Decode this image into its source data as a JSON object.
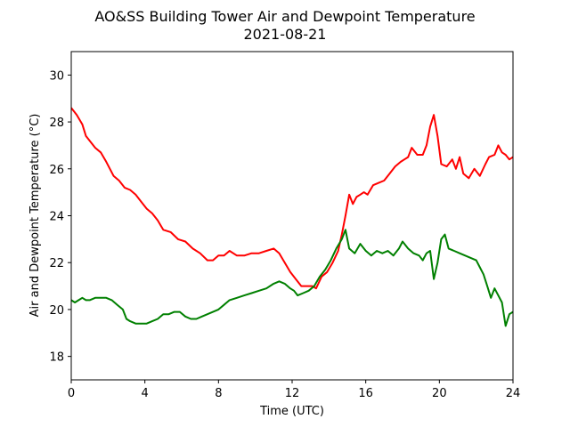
{
  "chart_data": {
    "type": "line",
    "title": "AO&SS Building Tower Air and Dewpoint Temperature",
    "subtitle": "2021-08-21",
    "xlabel": "Time (UTC)",
    "ylabel": "Air and Dewpoint Temperature (°C)",
    "xlim": [
      0,
      24
    ],
    "ylim": [
      17,
      31
    ],
    "xticks": [
      0,
      4,
      8,
      12,
      16,
      20,
      24
    ],
    "yticks": [
      18,
      20,
      22,
      24,
      26,
      28,
      30
    ],
    "grid": false,
    "legend": "none",
    "series": [
      {
        "color": "#ff0000",
        "x": [
          0,
          0.3,
          0.6,
          0.8,
          1.0,
          1.3,
          1.6,
          1.9,
          2.1,
          2.3,
          2.6,
          2.9,
          3.2,
          3.5,
          3.8,
          4.1,
          4.4,
          4.7,
          5.0,
          5.4,
          5.8,
          6.2,
          6.6,
          7.0,
          7.4,
          7.7,
          8.0,
          8.3,
          8.6,
          9.0,
          9.4,
          9.8,
          10.2,
          10.6,
          11.0,
          11.3,
          11.6,
          11.9,
          12.2,
          12.5,
          12.8,
          13.1,
          13.3,
          13.6,
          13.9,
          14.2,
          14.5,
          14.7,
          14.9,
          15.1,
          15.3,
          15.5,
          15.7,
          15.9,
          16.1,
          16.4,
          16.7,
          17.0,
          17.3,
          17.6,
          17.9,
          18.1,
          18.3,
          18.5,
          18.8,
          19.1,
          19.3,
          19.5,
          19.7,
          19.9,
          20.1,
          20.4,
          20.7,
          20.9,
          21.1,
          21.3,
          21.6,
          21.9,
          22.2,
          22.5,
          22.7,
          23.0,
          23.2,
          23.4,
          23.6,
          23.8,
          24.0
        ],
        "values": [
          28.6,
          28.3,
          27.9,
          27.4,
          27.2,
          26.9,
          26.7,
          26.3,
          26.0,
          25.7,
          25.5,
          25.2,
          25.1,
          24.9,
          24.6,
          24.3,
          24.1,
          23.8,
          23.4,
          23.3,
          23.0,
          22.9,
          22.6,
          22.4,
          22.1,
          22.1,
          22.3,
          22.3,
          22.5,
          22.3,
          22.3,
          22.4,
          22.4,
          22.5,
          22.6,
          22.4,
          22.0,
          21.6,
          21.3,
          21.0,
          21.0,
          21.0,
          20.9,
          21.4,
          21.6,
          22.0,
          22.5,
          23.2,
          24.0,
          24.9,
          24.5,
          24.8,
          24.9,
          25.0,
          24.9,
          25.3,
          25.4,
          25.5,
          25.8,
          26.1,
          26.3,
          26.4,
          26.5,
          26.9,
          26.6,
          26.6,
          27.0,
          27.8,
          28.3,
          27.4,
          26.2,
          26.1,
          26.4,
          26.0,
          26.5,
          25.8,
          25.6,
          26.0,
          25.7,
          26.2,
          26.5,
          26.6,
          27.0,
          26.7,
          26.6,
          26.4,
          26.5
        ]
      },
      {
        "color": "#008000",
        "x": [
          0,
          0.2,
          0.4,
          0.6,
          0.8,
          1.0,
          1.3,
          1.6,
          1.9,
          2.2,
          2.5,
          2.8,
          3.0,
          3.2,
          3.5,
          3.8,
          4.1,
          4.4,
          4.7,
          5.0,
          5.3,
          5.6,
          5.9,
          6.2,
          6.5,
          6.8,
          7.1,
          7.4,
          7.7,
          8.0,
          8.3,
          8.6,
          9.0,
          9.4,
          9.8,
          10.2,
          10.6,
          11.0,
          11.3,
          11.6,
          11.9,
          12.1,
          12.3,
          12.6,
          12.9,
          13.2,
          13.5,
          13.8,
          14.1,
          14.4,
          14.7,
          14.9,
          15.1,
          15.4,
          15.7,
          16.0,
          16.3,
          16.6,
          16.9,
          17.2,
          17.5,
          17.8,
          18.0,
          18.3,
          18.6,
          18.9,
          19.1,
          19.3,
          19.5,
          19.7,
          19.9,
          20.1,
          20.3,
          20.5,
          20.8,
          21.1,
          21.4,
          21.7,
          22.0,
          22.2,
          22.4,
          22.6,
          22.8,
          23.0,
          23.2,
          23.4,
          23.6,
          23.8,
          24.0
        ],
        "values": [
          20.4,
          20.3,
          20.4,
          20.5,
          20.4,
          20.4,
          20.5,
          20.5,
          20.5,
          20.4,
          20.2,
          20.0,
          19.6,
          19.5,
          19.4,
          19.4,
          19.4,
          19.5,
          19.6,
          19.8,
          19.8,
          19.9,
          19.9,
          19.7,
          19.6,
          19.6,
          19.7,
          19.8,
          19.9,
          20.0,
          20.2,
          20.4,
          20.5,
          20.6,
          20.7,
          20.8,
          20.9,
          21.1,
          21.2,
          21.1,
          20.9,
          20.8,
          20.6,
          20.7,
          20.8,
          21.0,
          21.4,
          21.7,
          22.1,
          22.6,
          23.0,
          23.4,
          22.6,
          22.4,
          22.8,
          22.5,
          22.3,
          22.5,
          22.4,
          22.5,
          22.3,
          22.6,
          22.9,
          22.6,
          22.4,
          22.3,
          22.1,
          22.4,
          22.5,
          21.3,
          22.0,
          23.0,
          23.2,
          22.6,
          22.5,
          22.4,
          22.3,
          22.2,
          22.1,
          21.8,
          21.5,
          21.0,
          20.5,
          20.9,
          20.6,
          20.3,
          19.3,
          19.8,
          19.9
        ]
      }
    ]
  }
}
